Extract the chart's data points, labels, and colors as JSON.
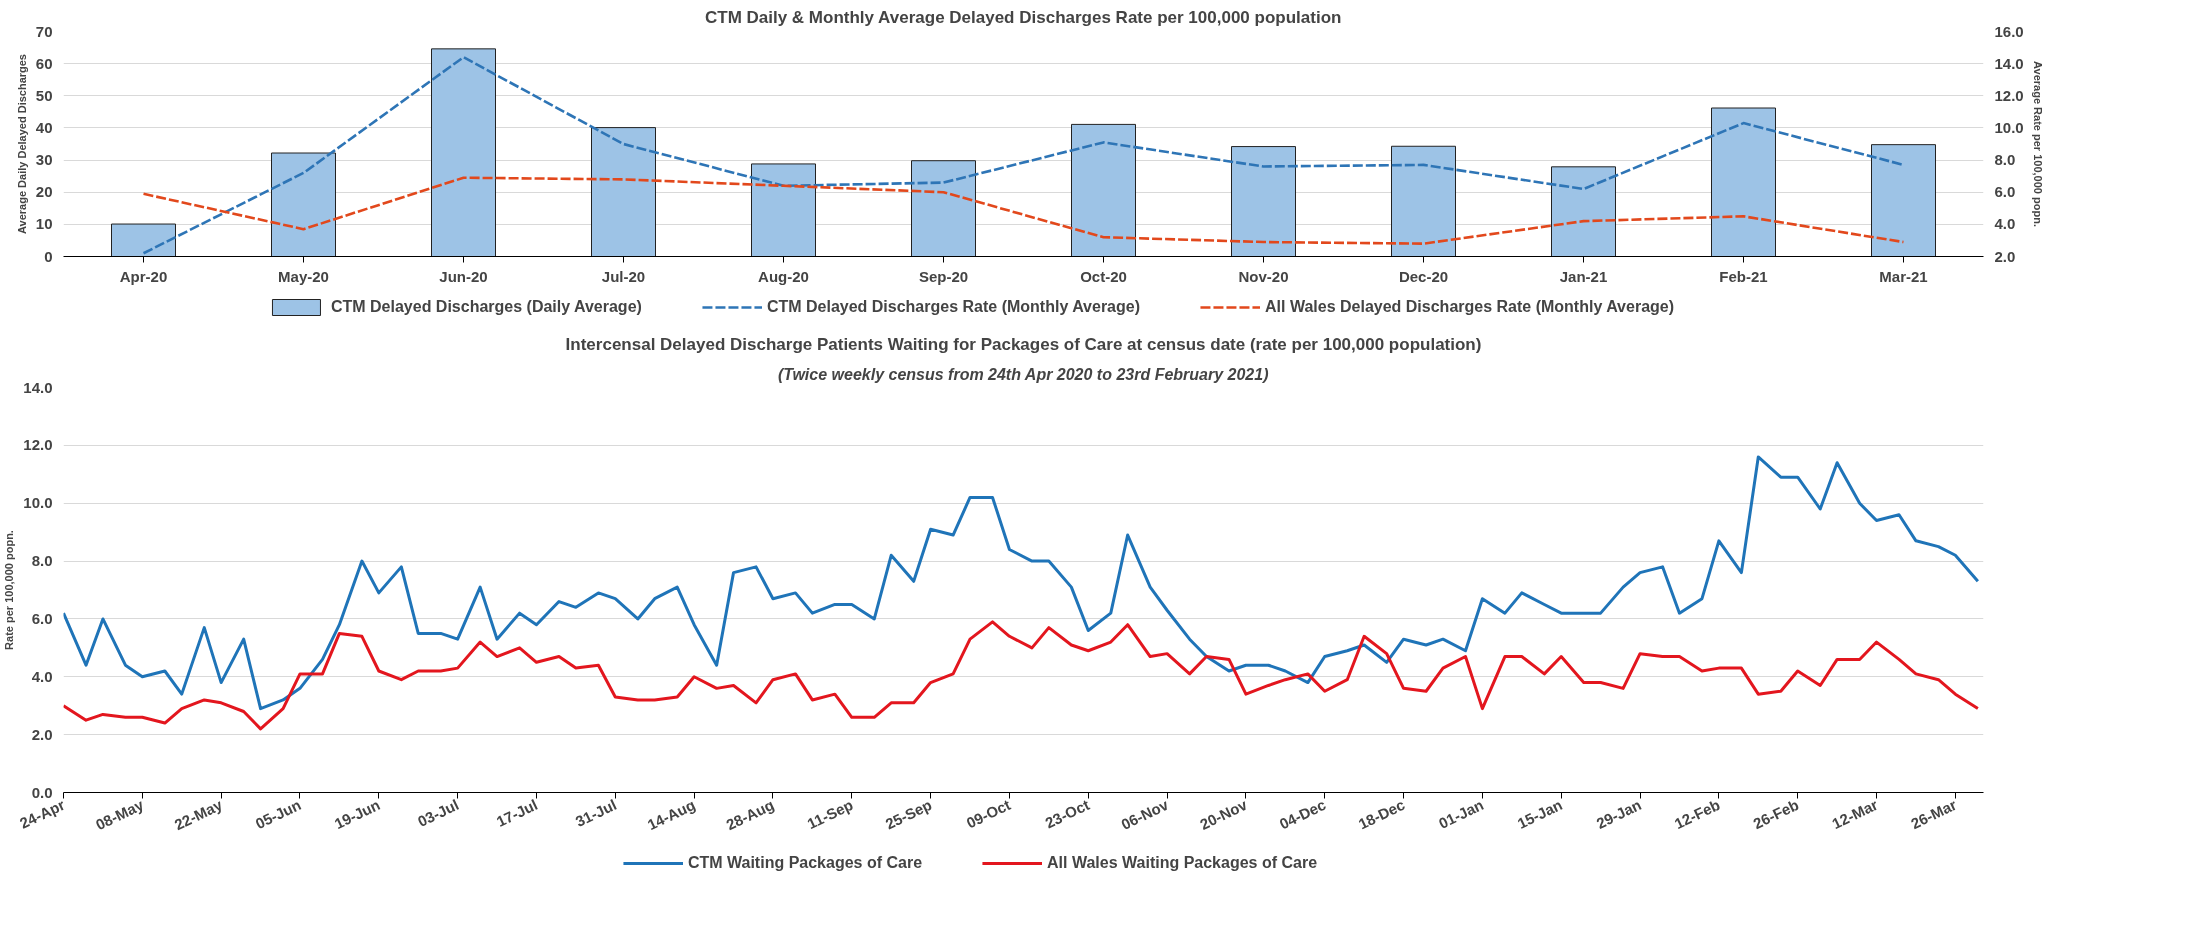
{
  "chart_data": [
    {
      "type": "bar",
      "title": "CTM Daily & Monthly Average Delayed Discharges Rate per 100,000 population",
      "ylabel": "Average Daily Delayed Discharges",
      "y2label": "Average Rate per 100,000 popn.",
      "categories": [
        "Apr-20",
        "May-20",
        "Jun-20",
        "Jul-20",
        "Aug-20",
        "Sep-20",
        "Oct-20",
        "Nov-20",
        "Dec-20",
        "Jan-21",
        "Feb-21",
        "Mar-21"
      ],
      "ylim": [
        0,
        70
      ],
      "yticks": [
        0,
        10,
        20,
        30,
        40,
        50,
        60,
        70
      ],
      "y2lim": [
        2,
        16
      ],
      "y2ticks": [
        {
          "value": 2,
          "label": "2.0"
        },
        {
          "value": 4,
          "label": "4.0"
        },
        {
          "value": 6,
          "label": "6.0"
        },
        {
          "value": 8,
          "label": "8.0"
        },
        {
          "value": 10,
          "label": "10.0"
        },
        {
          "value": 12,
          "label": "12.0"
        },
        {
          "value": 14,
          "label": "14.0"
        },
        {
          "value": 16,
          "label": "16.0"
        }
      ],
      "grid": "y",
      "legend": "bottom",
      "series": [
        {
          "name": "CTM Delayed Discharges (Daily Average)",
          "type": "bar",
          "color": "#9dc3e6",
          "values": [
            10.1,
            32.2,
            64.6,
            40.1,
            28.8,
            29.8,
            41.1,
            34.2,
            34.3,
            27.9,
            46.2,
            34.8
          ]
        },
        {
          "name": "CTM Delayed Discharges Rate (Monthly Average)",
          "type": "line",
          "axis": "y2",
          "line_style": "dashed",
          "color": "#2e75b6",
          "values": [
            2.2,
            7.2,
            14.4,
            9.0,
            6.4,
            6.6,
            9.1,
            7.6,
            7.7,
            6.2,
            10.3,
            7.7
          ]
        },
        {
          "name": "All Wales Delayed Discharges Rate (Monthly Average)",
          "type": "line",
          "axis": "y2",
          "line_style": "dashed",
          "color": "#e2481c",
          "values": [
            5.9,
            3.7,
            6.9,
            6.8,
            6.4,
            6.0,
            3.2,
            2.9,
            2.8,
            4.2,
            4.5,
            2.9
          ]
        }
      ]
    },
    {
      "type": "line",
      "title": "Intercensal Delayed Discharge Patients Waiting for Packages of Care at census date (rate per 100,000 population)",
      "subtitle": "(Twice weekly census from 24th Apr 2020 to 23rd February 2021)",
      "ylabel": "Rate per 100,000 popn.",
      "x": [
        "2020-04-24",
        "2020-04-28",
        "2020-05-01",
        "2020-05-05",
        "2020-05-08",
        "2020-05-12",
        "2020-05-15",
        "2020-05-19",
        "2020-05-22",
        "2020-05-26",
        "2020-05-29",
        "2020-06-02",
        "2020-06-05",
        "2020-06-09",
        "2020-06-12",
        "2020-06-16",
        "2020-06-19",
        "2020-06-23",
        "2020-06-26",
        "2020-06-30",
        "2020-07-03",
        "2020-07-07",
        "2020-07-10",
        "2020-07-14",
        "2020-07-17",
        "2020-07-21",
        "2020-07-24",
        "2020-07-28",
        "2020-07-31",
        "2020-08-04",
        "2020-08-07",
        "2020-08-11",
        "2020-08-14",
        "2020-08-18",
        "2020-08-21",
        "2020-08-25",
        "2020-08-28",
        "2020-09-01",
        "2020-09-04",
        "2020-09-08",
        "2020-09-11",
        "2020-09-15",
        "2020-09-18",
        "2020-09-22",
        "2020-09-25",
        "2020-09-29",
        "2020-10-02",
        "2020-10-06",
        "2020-10-09",
        "2020-10-13",
        "2020-10-16",
        "2020-10-20",
        "2020-10-23",
        "2020-10-27",
        "2020-10-30",
        "2020-11-03",
        "2020-11-06",
        "2020-11-10",
        "2020-11-13",
        "2020-11-17",
        "2020-11-20",
        "2020-11-24",
        "2020-11-27",
        "2020-12-01",
        "2020-12-04",
        "2020-12-08",
        "2020-12-11",
        "2020-12-15",
        "2020-12-18",
        "2020-12-22",
        "2020-12-25",
        "2020-12-29",
        "2021-01-01",
        "2021-01-05",
        "2021-01-08",
        "2021-01-12",
        "2021-01-15",
        "2021-01-19",
        "2021-01-22",
        "2021-01-26",
        "2021-01-29",
        "2021-02-02",
        "2021-02-05",
        "2021-02-09",
        "2021-02-12",
        "2021-02-16",
        "2021-02-19",
        "2021-02-23",
        "2021-02-26",
        "2021-03-02",
        "2021-03-05",
        "2021-03-09",
        "2021-03-12",
        "2021-03-16",
        "2021-03-19",
        "2021-03-23",
        "2021-03-26",
        "2021-03-30"
      ],
      "xlim": [
        "2020-04-24",
        "2021-03-31"
      ],
      "xticks": [
        {
          "value": "2020-04-24",
          "label": "24-Apr"
        },
        {
          "value": "2020-05-08",
          "label": "08-May"
        },
        {
          "value": "2020-05-22",
          "label": "22-May"
        },
        {
          "value": "2020-06-05",
          "label": "05-Jun"
        },
        {
          "value": "2020-06-19",
          "label": "19-Jun"
        },
        {
          "value": "2020-07-03",
          "label": "03-Jul"
        },
        {
          "value": "2020-07-17",
          "label": "17-Jul"
        },
        {
          "value": "2020-07-31",
          "label": "31-Jul"
        },
        {
          "value": "2020-08-14",
          "label": "14-Aug"
        },
        {
          "value": "2020-08-28",
          "label": "28-Aug"
        },
        {
          "value": "2020-09-11",
          "label": "11-Sep"
        },
        {
          "value": "2020-09-25",
          "label": "25-Sep"
        },
        {
          "value": "2020-10-09",
          "label": "09-Oct"
        },
        {
          "value": "2020-10-23",
          "label": "23-Oct"
        },
        {
          "value": "2020-11-06",
          "label": "06-Nov"
        },
        {
          "value": "2020-11-20",
          "label": "20-Nov"
        },
        {
          "value": "2020-12-04",
          "label": "04-Dec"
        },
        {
          "value": "2020-12-18",
          "label": "18-Dec"
        },
        {
          "value": "2021-01-01",
          "label": "01-Jan"
        },
        {
          "value": "2021-01-15",
          "label": "15-Jan"
        },
        {
          "value": "2021-01-29",
          "label": "29-Jan"
        },
        {
          "value": "2021-02-12",
          "label": "12-Feb"
        },
        {
          "value": "2021-02-26",
          "label": "26-Feb"
        },
        {
          "value": "2021-03-12",
          "label": "12-Mar"
        },
        {
          "value": "2021-03-26",
          "label": "26-Mar"
        }
      ],
      "ylim": [
        0,
        14
      ],
      "yticks": [
        {
          "value": 0,
          "label": "0.0"
        },
        {
          "value": 2,
          "label": "2.0"
        },
        {
          "value": 4,
          "label": "4.0"
        },
        {
          "value": 6,
          "label": "6.0"
        },
        {
          "value": 8,
          "label": "8.0"
        },
        {
          "value": 10,
          "label": "10.0"
        },
        {
          "value": 12,
          "label": "12.0"
        },
        {
          "value": 14,
          "label": "14.0"
        }
      ],
      "grid": "y",
      "legend": "bottom",
      "series": [
        {
          "name": "CTM Waiting Packages of Care",
          "color": "#1f74b8",
          "values": [
            6.2,
            4.4,
            6.0,
            4.4,
            4.0,
            4.2,
            3.4,
            5.7,
            3.8,
            5.3,
            2.9,
            3.2,
            3.6,
            4.6,
            5.8,
            8.0,
            6.9,
            7.8,
            5.5,
            5.5,
            5.3,
            7.1,
            5.3,
            6.2,
            5.8,
            6.6,
            6.4,
            6.9,
            6.7,
            6.0,
            6.7,
            7.1,
            5.8,
            4.4,
            7.6,
            7.8,
            6.7,
            6.9,
            6.2,
            6.5,
            6.5,
            6.0,
            8.2,
            7.3,
            9.1,
            8.9,
            10.2,
            10.2,
            8.4,
            8.0,
            8.0,
            7.1,
            5.6,
            6.2,
            8.9,
            7.1,
            6.3,
            5.3,
            4.7,
            4.2,
            4.4,
            4.4,
            4.2,
            3.8,
            4.7,
            4.9,
            5.1,
            4.5,
            5.3,
            5.1,
            5.3,
            4.9,
            6.7,
            6.2,
            6.9,
            6.5,
            6.2,
            6.2,
            6.2,
            7.1,
            7.6,
            7.8,
            6.2,
            6.7,
            8.7,
            7.6,
            11.6,
            10.9,
            10.9,
            9.8,
            11.4,
            10.0,
            9.4,
            9.6,
            8.7,
            8.5,
            8.2,
            7.3
          ]
        },
        {
          "name": "All Wales Waiting Packages of Care",
          "color": "#e3161e",
          "values": [
            3.0,
            2.5,
            2.7,
            2.6,
            2.6,
            2.4,
            2.9,
            3.2,
            3.1,
            2.8,
            2.2,
            2.9,
            4.1,
            4.1,
            5.5,
            5.4,
            4.2,
            3.9,
            4.2,
            4.2,
            4.3,
            5.2,
            4.7,
            5.0,
            4.5,
            4.7,
            4.3,
            4.4,
            3.3,
            3.2,
            3.2,
            3.3,
            4.0,
            3.6,
            3.7,
            3.1,
            3.9,
            4.1,
            3.2,
            3.4,
            2.6,
            2.6,
            3.1,
            3.1,
            3.8,
            4.1,
            5.3,
            5.9,
            5.4,
            5.0,
            5.7,
            5.1,
            4.9,
            5.2,
            5.8,
            4.7,
            4.8,
            4.1,
            4.7,
            4.6,
            3.4,
            3.7,
            3.9,
            4.1,
            3.5,
            3.9,
            5.4,
            4.8,
            3.6,
            3.5,
            4.3,
            4.7,
            2.9,
            4.7,
            4.7,
            4.1,
            4.7,
            3.8,
            3.8,
            3.6,
            4.8,
            4.7,
            4.7,
            4.2,
            4.3,
            4.3,
            3.4,
            3.5,
            4.2,
            3.7,
            4.6,
            4.6,
            5.2,
            4.6,
            4.1,
            3.9,
            3.4,
            2.9
          ]
        }
      ]
    }
  ]
}
